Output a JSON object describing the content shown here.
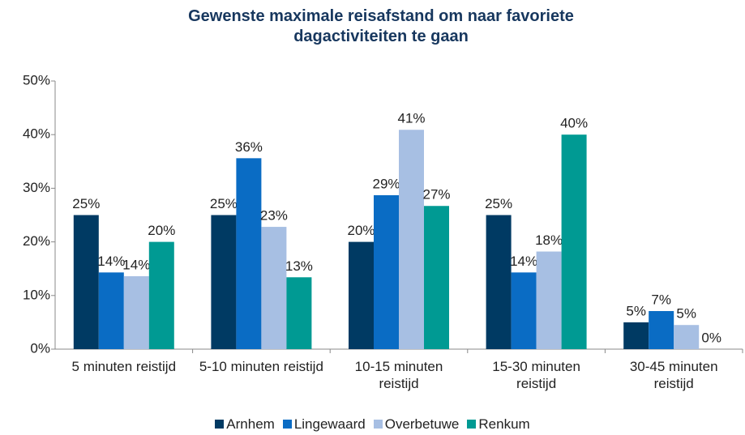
{
  "chart_data": {
    "type": "bar",
    "title": "Gewenste maximale reisafstand om naar favoriete dagactiviteiten te gaan",
    "categories": [
      "5 minuten reistijd",
      "5-10 minuten reistijd",
      "10-15 minuten reistijd",
      "15-30 minuten reistijd",
      "30-45 minuten reistijd"
    ],
    "series": [
      {
        "name": "Arnhem",
        "color": "#003a63",
        "values": [
          25,
          25,
          20,
          25,
          5
        ],
        "value_labels": [
          "25%",
          "25%",
          "20%",
          "25%",
          "5%"
        ]
      },
      {
        "name": "Lingewaard",
        "color": "#0a6cc4",
        "values": [
          14.3,
          35.6,
          28.7,
          14.3,
          7.1
        ],
        "value_labels": [
          "14%",
          "36%",
          "29%",
          "14%",
          "7%"
        ]
      },
      {
        "name": "Overbetuwe",
        "color": "#a7bfe3",
        "values": [
          13.6,
          22.8,
          40.9,
          18.2,
          4.5
        ],
        "value_labels": [
          "14%",
          "23%",
          "41%",
          "18%",
          "5%"
        ]
      },
      {
        "name": "Renkum",
        "color": "#009a93",
        "values": [
          20,
          13.4,
          26.7,
          40,
          0
        ],
        "value_labels": [
          "20%",
          "13%",
          "27%",
          "40%",
          "0%"
        ]
      }
    ],
    "ylim": [
      0,
      50
    ],
    "yticks": [
      {
        "value": 0,
        "label": "0%"
      },
      {
        "value": 10,
        "label": "10%"
      },
      {
        "value": 20,
        "label": "20%"
      },
      {
        "value": 30,
        "label": "30%"
      },
      {
        "value": 40,
        "label": "40%"
      },
      {
        "value": 50,
        "label": "50%"
      }
    ],
    "legend": "bottom"
  }
}
